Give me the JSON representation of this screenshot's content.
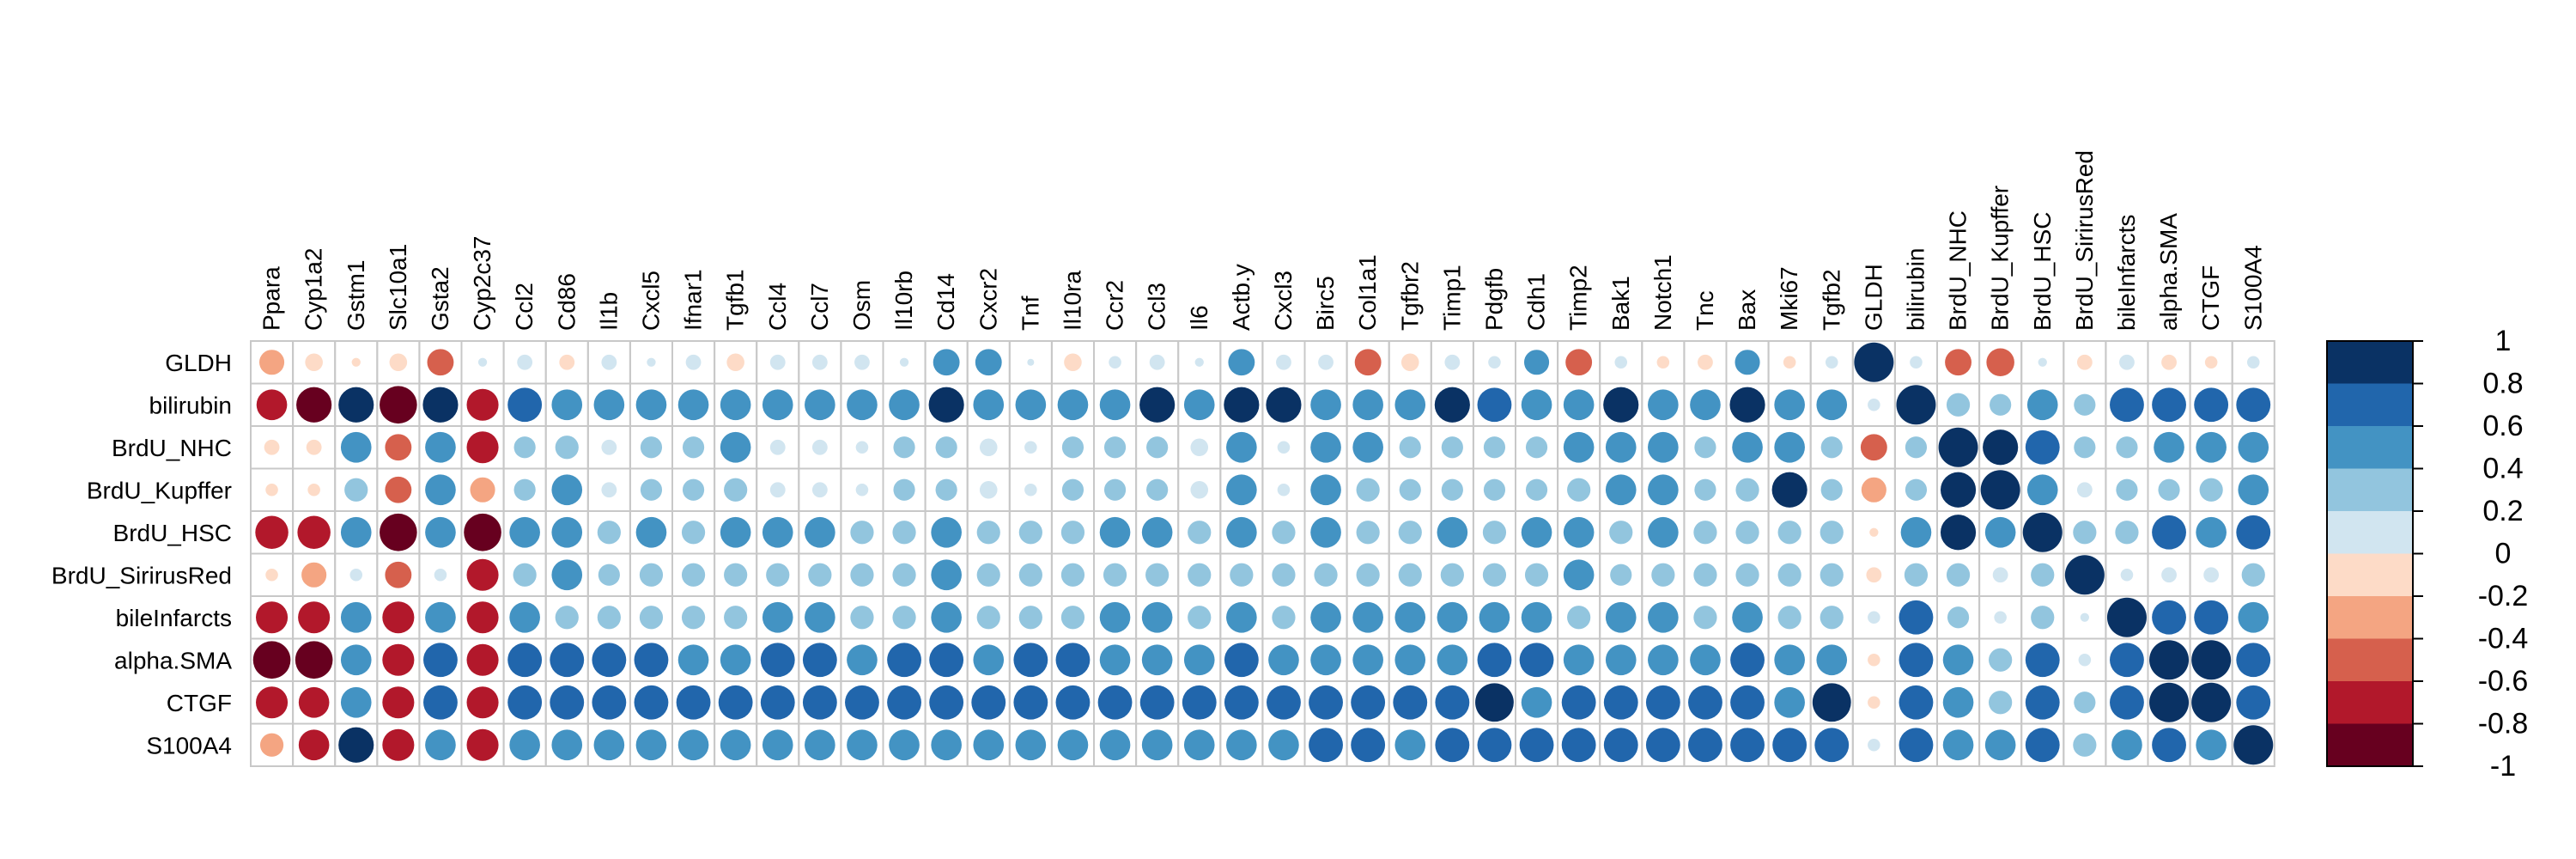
{
  "chart_data": {
    "type": "heatmap",
    "style": "circle-correlation-matrix",
    "columns": [
      "Ppara",
      "Cyp1a2",
      "Gstm1",
      "Slc10a1",
      "Gsta2",
      "Cyp2c37",
      "Ccl2",
      "Cd86",
      "Il1b",
      "Cxcl5",
      "Ifnar1",
      "Tgfb1",
      "Ccl4",
      "Ccl7",
      "Osm",
      "Il10rb",
      "Cd14",
      "Cxcr2",
      "Tnf",
      "Il10ra",
      "Ccr2",
      "Ccl3",
      "Il6",
      "Actb.y",
      "Cxcl3",
      "Birc5",
      "Col1a1",
      "Tgfbr2",
      "Timp1",
      "Pdgfb",
      "Cdh1",
      "Timp2",
      "Bak1",
      "Notch1",
      "Tnc",
      "Bax",
      "Mki67",
      "Tgfb2",
      "GLDH",
      "bilirubin",
      "BrdU_NHC",
      "BrdU_Kupffer",
      "BrdU_HSC",
      "BrdU_SirirusRed",
      "bileInfarcts",
      "alpha.SMA",
      "CTGF",
      "S100A4"
    ],
    "rows": [
      "GLDH",
      "bilirubin",
      "BrdU_NHC",
      "BrdU_Kupffer",
      "BrdU_HSC",
      "BrdU_SirirusRed",
      "bileInfarcts",
      "alpha.SMA",
      "CTGF",
      "S100A4"
    ],
    "values": [
      [
        -0.4,
        -0.2,
        -0.05,
        -0.2,
        -0.45,
        0.05,
        0.15,
        -0.15,
        0.15,
        0.05,
        0.15,
        -0.2,
        0.15,
        0.15,
        0.15,
        0.05,
        0.45,
        0.45,
        0.03,
        -0.2,
        0.1,
        0.15,
        0.05,
        0.45,
        0.15,
        0.15,
        -0.45,
        -0.2,
        0.15,
        0.1,
        0.4,
        -0.45,
        0.1,
        -0.1,
        -0.15,
        0.4,
        -0.1,
        0.1,
        1,
        0.1,
        -0.45,
        -0.5,
        0.05,
        -0.15,
        0.15,
        -0.15,
        -0.1,
        0.1
      ],
      [
        -0.6,
        -0.8,
        0.8,
        -0.9,
        0.8,
        -0.65,
        0.75,
        0.6,
        0.6,
        0.6,
        0.6,
        0.6,
        0.6,
        0.6,
        0.6,
        0.6,
        0.8,
        0.6,
        0.6,
        0.6,
        0.6,
        0.8,
        0.6,
        0.8,
        0.8,
        0.6,
        0.6,
        0.6,
        0.8,
        0.75,
        0.6,
        0.6,
        0.8,
        0.6,
        0.6,
        0.8,
        0.6,
        0.6,
        0.1,
        1,
        0.35,
        0.3,
        0.6,
        0.3,
        0.75,
        0.75,
        0.75,
        0.75
      ],
      [
        -0.15,
        -0.15,
        0.6,
        -0.45,
        0.6,
        -0.65,
        0.3,
        0.35,
        0.15,
        0.3,
        0.3,
        0.6,
        0.15,
        0.15,
        0.1,
        0.3,
        0.3,
        0.2,
        0.1,
        0.3,
        0.3,
        0.3,
        0.2,
        0.6,
        0.1,
        0.6,
        0.6,
        0.3,
        0.3,
        0.3,
        0.3,
        0.6,
        0.6,
        0.6,
        0.3,
        0.6,
        0.6,
        0.3,
        -0.45,
        0.3,
        1,
        0.8,
        0.75,
        0.3,
        0.3,
        0.6,
        0.6,
        0.6
      ],
      [
        -0.1,
        -0.1,
        0.35,
        -0.45,
        0.6,
        -0.4,
        0.3,
        0.6,
        0.15,
        0.3,
        0.3,
        0.35,
        0.15,
        0.15,
        0.1,
        0.3,
        0.3,
        0.2,
        0.1,
        0.3,
        0.3,
        0.3,
        0.2,
        0.6,
        0.1,
        0.6,
        0.35,
        0.3,
        0.3,
        0.3,
        0.3,
        0.35,
        0.6,
        0.6,
        0.3,
        0.35,
        0.8,
        0.3,
        -0.4,
        0.3,
        0.8,
        1,
        0.6,
        0.15,
        0.3,
        0.3,
        0.35,
        0.6
      ],
      [
        -0.7,
        -0.7,
        0.6,
        -0.9,
        0.6,
        -0.9,
        0.6,
        0.6,
        0.35,
        0.6,
        0.35,
        0.6,
        0.6,
        0.6,
        0.35,
        0.35,
        0.6,
        0.35,
        0.35,
        0.35,
        0.6,
        0.6,
        0.35,
        0.6,
        0.35,
        0.6,
        0.35,
        0.35,
        0.6,
        0.35,
        0.6,
        0.6,
        0.35,
        0.6,
        0.35,
        0.35,
        0.35,
        0.35,
        -0.05,
        0.6,
        0.8,
        0.6,
        1,
        0.35,
        0.35,
        0.75,
        0.6,
        0.75
      ],
      [
        -0.1,
        -0.4,
        0.1,
        -0.45,
        0.1,
        -0.65,
        0.35,
        0.6,
        0.3,
        0.35,
        0.35,
        0.35,
        0.35,
        0.35,
        0.35,
        0.35,
        0.6,
        0.35,
        0.35,
        0.35,
        0.35,
        0.35,
        0.35,
        0.35,
        0.35,
        0.35,
        0.35,
        0.35,
        0.35,
        0.35,
        0.35,
        0.6,
        0.3,
        0.35,
        0.35,
        0.35,
        0.35,
        0.35,
        -0.15,
        0.35,
        0.35,
        0.15,
        0.35,
        1,
        0.1,
        0.15,
        0.15,
        0.35
      ],
      [
        -0.65,
        -0.65,
        0.6,
        -0.65,
        0.6,
        -0.65,
        0.6,
        0.35,
        0.35,
        0.35,
        0.35,
        0.35,
        0.6,
        0.6,
        0.35,
        0.35,
        0.6,
        0.35,
        0.35,
        0.35,
        0.6,
        0.6,
        0.35,
        0.6,
        0.35,
        0.6,
        0.6,
        0.6,
        0.6,
        0.6,
        0.6,
        0.35,
        0.6,
        0.6,
        0.35,
        0.6,
        0.35,
        0.35,
        0.1,
        0.75,
        0.3,
        0.1,
        0.35,
        0.05,
        1,
        0.75,
        0.75,
        0.6
      ],
      [
        -0.9,
        -0.9,
        0.6,
        -0.65,
        0.75,
        -0.65,
        0.75,
        0.75,
        0.75,
        0.75,
        0.6,
        0.6,
        0.75,
        0.75,
        0.6,
        0.75,
        0.75,
        0.6,
        0.75,
        0.75,
        0.6,
        0.6,
        0.6,
        0.75,
        0.6,
        0.6,
        0.6,
        0.6,
        0.6,
        0.75,
        0.75,
        0.6,
        0.6,
        0.6,
        0.6,
        0.75,
        0.6,
        0.6,
        -0.1,
        0.75,
        0.6,
        0.35,
        0.75,
        0.1,
        0.75,
        1,
        1,
        0.75
      ],
      [
        -0.65,
        -0.6,
        0.6,
        -0.65,
        0.75,
        -0.65,
        0.75,
        0.75,
        0.75,
        0.75,
        0.75,
        0.75,
        0.75,
        0.75,
        0.75,
        0.75,
        0.75,
        0.75,
        0.75,
        0.75,
        0.75,
        0.75,
        0.75,
        0.75,
        0.75,
        0.75,
        0.75,
        0.75,
        0.75,
        0.95,
        0.6,
        0.75,
        0.75,
        0.75,
        0.75,
        0.75,
        0.6,
        0.95,
        -0.1,
        0.75,
        0.6,
        0.35,
        0.75,
        0.3,
        0.75,
        1,
        1,
        0.75
      ],
      [
        -0.35,
        -0.6,
        0.8,
        -0.65,
        0.6,
        -0.65,
        0.6,
        0.6,
        0.6,
        0.6,
        0.6,
        0.6,
        0.6,
        0.6,
        0.6,
        0.6,
        0.6,
        0.6,
        0.6,
        0.6,
        0.6,
        0.6,
        0.6,
        0.6,
        0.6,
        0.75,
        0.75,
        0.6,
        0.75,
        0.75,
        0.75,
        0.75,
        0.75,
        0.75,
        0.75,
        0.75,
        0.75,
        0.75,
        0.1,
        0.75,
        0.6,
        0.6,
        0.75,
        0.35,
        0.6,
        0.75,
        0.6,
        1
      ]
    ],
    "colorbar": {
      "tick_labels": [
        "1",
        "0.8",
        "0.6",
        "0.4",
        "0.2",
        "0",
        "-0.2",
        "-0.4",
        "-0.6",
        "-0.8",
        "-1"
      ],
      "range": [
        -1,
        1
      ],
      "colors_high_to_low": [
        "#0a3264",
        "#2166ac",
        "#4393c3",
        "#92c5de",
        "#d1e5f0",
        "#fddbc7",
        "#f4a582",
        "#d6604d",
        "#b2182b",
        "#67001f"
      ]
    },
    "grid": true
  }
}
